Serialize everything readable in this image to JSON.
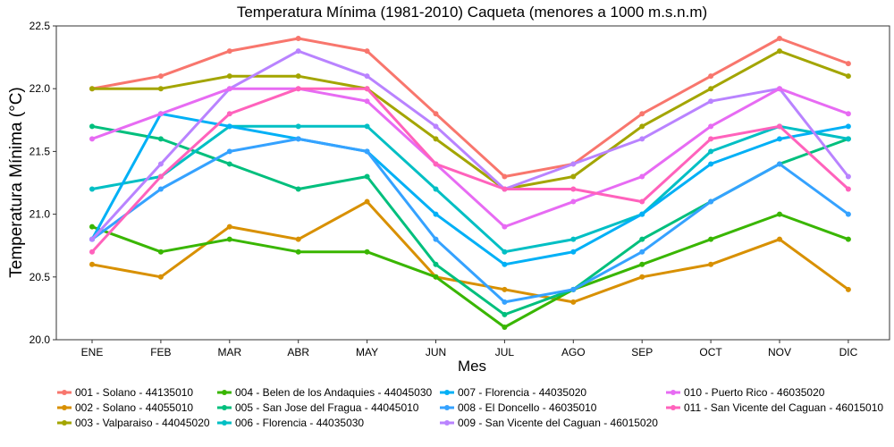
{
  "chart_data": {
    "type": "line",
    "title": "Temperatura Mínima (1981-2010) Caqueta (menores a 1000 m.s.n.m)",
    "xlabel": "Mes",
    "ylabel": "Temperatura Mínima (°C)",
    "categories": [
      "ENE",
      "FEB",
      "MAR",
      "ABR",
      "MAY",
      "JUN",
      "JUL",
      "AGO",
      "SEP",
      "OCT",
      "NOV",
      "DIC"
    ],
    "ylim": [
      20.0,
      22.5
    ],
    "yticks": [
      "20.0",
      "20.5",
      "21.0",
      "21.5",
      "22.0",
      "22.5"
    ],
    "grid": false,
    "legend_position": "bottom",
    "series": [
      {
        "name": "001 - Solano - 44135010",
        "color": "#F8766D",
        "values": [
          22.0,
          22.1,
          22.3,
          22.4,
          22.3,
          21.8,
          21.3,
          21.4,
          21.8,
          22.1,
          22.4,
          22.2
        ]
      },
      {
        "name": "002 - Solano - 44055010",
        "color": "#D89000",
        "values": [
          20.6,
          20.5,
          20.9,
          20.8,
          21.1,
          20.5,
          20.4,
          20.3,
          20.5,
          20.6,
          20.8,
          20.4
        ]
      },
      {
        "name": "003 - Valparaiso - 44045020",
        "color": "#A3A500",
        "values": [
          22.0,
          22.0,
          22.1,
          22.1,
          22.0,
          21.6,
          21.2,
          21.3,
          21.7,
          22.0,
          22.3,
          22.1
        ]
      },
      {
        "name": "004 - Belen de los Andaquies - 44045030",
        "color": "#39B600",
        "values": [
          20.9,
          20.7,
          20.8,
          20.7,
          20.7,
          20.5,
          20.1,
          20.4,
          20.6,
          20.8,
          21.0,
          20.8
        ]
      },
      {
        "name": "005 - San Jose del Fragua - 44045010",
        "color": "#00BF7D",
        "values": [
          21.7,
          21.6,
          21.4,
          21.2,
          21.3,
          20.6,
          20.2,
          20.4,
          20.8,
          21.1,
          21.4,
          21.6
        ]
      },
      {
        "name": "006 - Florencia - 44035030",
        "color": "#00BFC4",
        "values": [
          21.2,
          21.3,
          21.7,
          21.7,
          21.7,
          21.2,
          20.7,
          20.8,
          21.0,
          21.5,
          21.7,
          21.6
        ]
      },
      {
        "name": "007 - Florencia - 44035020",
        "color": "#00B0F6",
        "values": [
          20.8,
          21.8,
          21.7,
          21.6,
          21.5,
          21.0,
          20.6,
          20.7,
          21.0,
          21.4,
          21.6,
          21.7
        ]
      },
      {
        "name": "008 - El Doncello - 46035010",
        "color": "#35A2FF",
        "values": [
          20.8,
          21.2,
          21.5,
          21.6,
          21.5,
          20.8,
          20.3,
          20.4,
          20.7,
          21.1,
          21.4,
          21.0
        ]
      },
      {
        "name": "009 - San Vicente del Caguan - 46015020",
        "color": "#B983FF",
        "values": [
          20.8,
          21.4,
          22.0,
          22.3,
          22.1,
          21.7,
          21.2,
          21.4,
          21.6,
          21.9,
          22.0,
          21.3
        ]
      },
      {
        "name": "010 - Puerto Rico - 46035020",
        "color": "#E76BF3",
        "values": [
          21.6,
          21.8,
          22.0,
          22.0,
          21.9,
          21.4,
          20.9,
          21.1,
          21.3,
          21.7,
          22.0,
          21.8
        ]
      },
      {
        "name": "011 - San Vicente del Caguan - 46015010",
        "color": "#FF62BC",
        "values": [
          20.7,
          21.3,
          21.8,
          22.0,
          22.0,
          21.4,
          21.2,
          21.2,
          21.1,
          21.6,
          21.7,
          21.2
        ]
      }
    ]
  }
}
